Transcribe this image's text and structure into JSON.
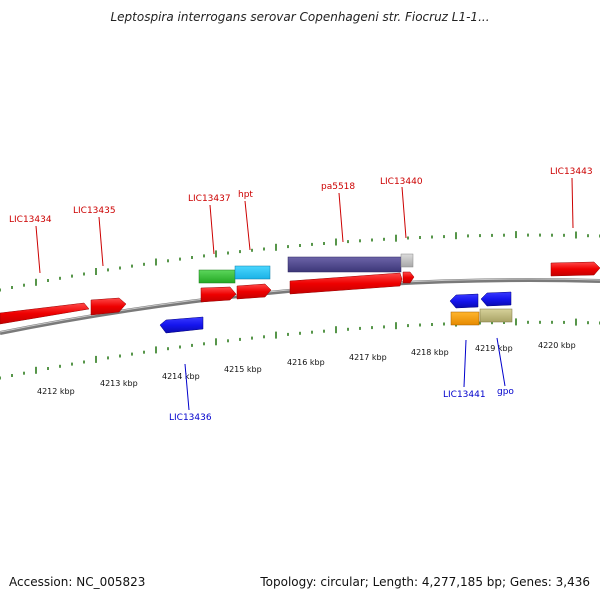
{
  "title": "Leptospira interrogans serovar Copenhageni str. Fiocruz L1-1...",
  "footer": {
    "accession": "Accession: NC_005823",
    "summary": "Topology: circular; Length: 4,277,185 bp; Genes: 3,436"
  },
  "colors": {
    "forward_label": "#cc0000",
    "reverse_label": "#0000cc",
    "tick": "#2e7d1e",
    "backbone": "#808080"
  },
  "kbp_labels": [
    "4212 kbp",
    "4213 kbp",
    "4214 kbp",
    "4215 kbp",
    "4216 kbp",
    "4217 kbp",
    "4218 kbp",
    "4219 kbp",
    "4220 kbp"
  ],
  "gene_labels": {
    "forward": [
      "LIC13434",
      "LIC13435",
      "LIC13437",
      "hpt",
      "pa5518",
      "LIC13440",
      "LIC13443"
    ],
    "reverse": [
      "LIC13436",
      "LIC13441",
      "gpo"
    ]
  }
}
